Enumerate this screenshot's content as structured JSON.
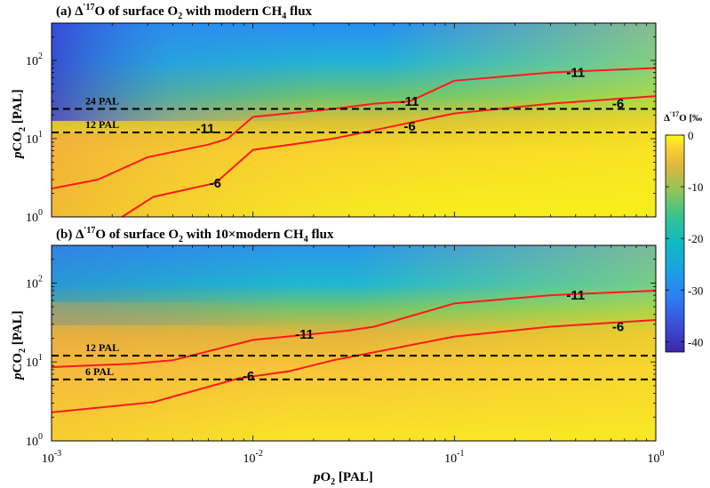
{
  "chart_data": [
    {
      "type": "heatmap",
      "title": "(a) Δ′17O of surface O2 with modern CH4 flux",
      "title_parts": {
        "prefix": "(a) Δ",
        "sup": "′17",
        "mid": "O of surface O",
        "sub": "2",
        "suffix": " with modern CH",
        "sub2": "4",
        "suffix2": " flux"
      },
      "xscale": "log",
      "yscale": "log",
      "xlim": [
        0.001,
        1
      ],
      "ylim": [
        1,
        300
      ],
      "ylabel": {
        "p": "p",
        "main": "CO",
        "sub": "2",
        "unit": " [PAL]"
      },
      "y_ticks": [
        {
          "base": "10",
          "exp": "0",
          "v": 1
        },
        {
          "base": "10",
          "exp": "1",
          "v": 10
        },
        {
          "base": "10",
          "exp": "2",
          "v": 100
        }
      ],
      "contours": [
        {
          "level": -11,
          "label": "-11",
          "points": [
            [
              0.001,
              2.3
            ],
            [
              0.0017,
              3.0
            ],
            [
              0.003,
              5.8
            ],
            [
              0.006,
              8.4
            ],
            [
              0.0075,
              10.0
            ],
            [
              0.01,
              19
            ],
            [
              0.025,
              24
            ],
            [
              0.04,
              28
            ],
            [
              0.06,
              30
            ],
            [
              0.1,
              55
            ],
            [
              0.3,
              70
            ],
            [
              1,
              80
            ]
          ],
          "labels_at": [
            [
              0.0058,
              13.5
            ],
            [
              0.06,
              30
            ],
            [
              0.4,
              70
            ]
          ]
        },
        {
          "level": -6,
          "label": "-6",
          "points": [
            [
              0.0021,
              0.9
            ],
            [
              0.0032,
              1.8
            ],
            [
              0.0065,
              2.7
            ],
            [
              0.01,
              7.2
            ],
            [
              0.025,
              10.0
            ],
            [
              0.05,
              14.5
            ],
            [
              0.1,
              21
            ],
            [
              0.3,
              28
            ],
            [
              1,
              35
            ]
          ],
          "labels_at": [
            [
              0.0065,
              2.7
            ],
            [
              0.06,
              14.5
            ],
            [
              0.65,
              28
            ]
          ]
        }
      ],
      "reference_lines": [
        {
          "y": 24,
          "label": "24 PAL"
        },
        {
          "y": 12,
          "label": "12 PAL"
        }
      ]
    },
    {
      "type": "heatmap",
      "title": "(b) Δ′17O of surface O2 with 10×modern CH4 flux",
      "title_parts": {
        "prefix": "(b) Δ",
        "sup": "′17",
        "mid": "O of surface O",
        "sub": "2",
        "suffix": " with 10×modern CH",
        "sub2": "4",
        "suffix2": " flux"
      },
      "xscale": "log",
      "yscale": "log",
      "xlim": [
        0.001,
        1
      ],
      "ylim": [
        1,
        300
      ],
      "xlabel": {
        "p": "p",
        "main": "O",
        "sub": "2",
        "unit": " [PAL]"
      },
      "ylabel": {
        "p": "p",
        "main": "CO",
        "sub": "2",
        "unit": " [PAL]"
      },
      "x_ticks": [
        {
          "base": "10",
          "exp": "-3",
          "v": 0.001
        },
        {
          "base": "10",
          "exp": "-2",
          "v": 0.01
        },
        {
          "base": "10",
          "exp": "-1",
          "v": 0.1
        },
        {
          "base": "10",
          "exp": "0",
          "v": 1
        }
      ],
      "y_ticks": [
        {
          "base": "10",
          "exp": "0",
          "v": 1
        },
        {
          "base": "10",
          "exp": "1",
          "v": 10
        },
        {
          "base": "10",
          "exp": "2",
          "v": 100
        }
      ],
      "contours": [
        {
          "level": -11,
          "label": "-11",
          "points": [
            [
              0.001,
              8.6
            ],
            [
              0.0025,
              9.5
            ],
            [
              0.004,
              10.5
            ],
            [
              0.01,
              19
            ],
            [
              0.03,
              25
            ],
            [
              0.04,
              28
            ],
            [
              0.1,
              55
            ],
            [
              0.3,
              70
            ],
            [
              1,
              80
            ]
          ],
          "labels_at": [
            [
              0.018,
              22.5
            ],
            [
              0.4,
              70
            ]
          ]
        },
        {
          "level": -6,
          "label": "-6",
          "points": [
            [
              0.001,
              2.3
            ],
            [
              0.0032,
              3.1
            ],
            [
              0.0085,
              6.2
            ],
            [
              0.015,
              7.6
            ],
            [
              0.025,
              10.5
            ],
            [
              0.1,
              21
            ],
            [
              0.3,
              28
            ],
            [
              1,
              34
            ]
          ],
          "labels_at": [
            [
              0.0095,
              6.6
            ],
            [
              0.65,
              28
            ]
          ]
        }
      ],
      "reference_lines": [
        {
          "y": 12,
          "label": "12 PAL"
        },
        {
          "y": 6,
          "label": "6 PAL"
        }
      ]
    }
  ],
  "colorbar": {
    "title_parts": {
      "prefix": "Δ",
      "sup": "′17",
      "suffix": "O [‰"
    },
    "range": [
      -42,
      0
    ],
    "ticks": [
      {
        "v": 0,
        "label": "0"
      },
      {
        "v": -10,
        "label": "-10"
      },
      {
        "v": -20,
        "label": "-20"
      },
      {
        "v": -30,
        "label": "-30"
      },
      {
        "v": -40,
        "label": "-40"
      }
    ],
    "colormap": "parula"
  },
  "colors": {
    "contour": "#ff1a1a",
    "reference_line": "#000000"
  }
}
